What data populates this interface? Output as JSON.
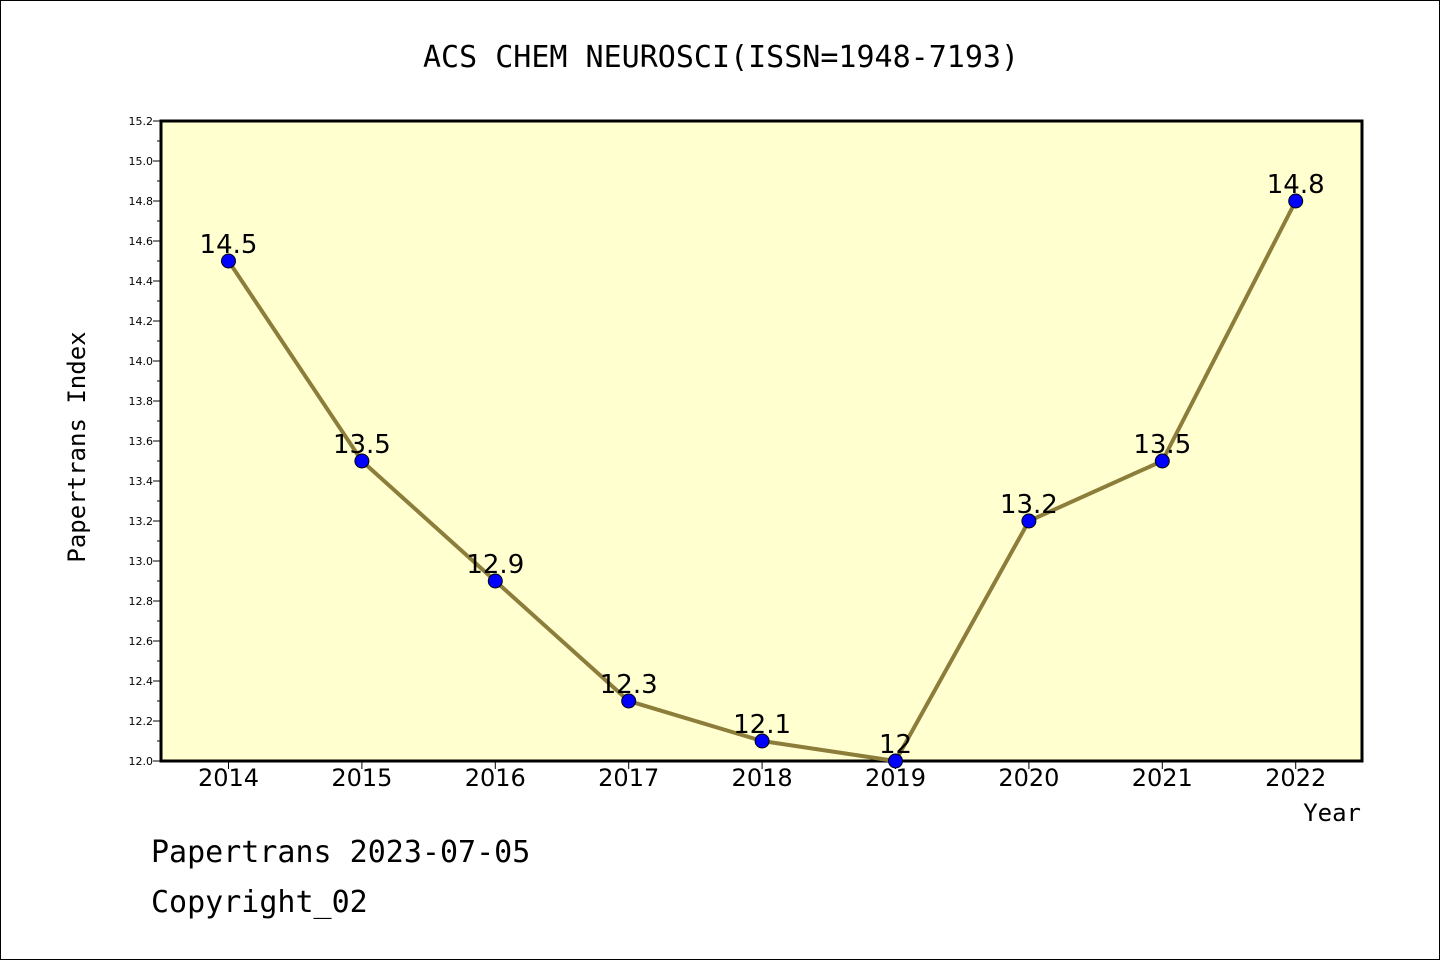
{
  "chart_data": {
    "type": "line",
    "title": "ACS CHEM NEUROSCI(ISSN=1948-7193)",
    "xlabel": "Year",
    "ylabel": "Papertrans Index",
    "categories": [
      "2014",
      "2015",
      "2016",
      "2017",
      "2018",
      "2019",
      "2020",
      "2021",
      "2022"
    ],
    "series": [
      {
        "values": [
          14.5,
          13.5,
          12.9,
          12.3,
          12.1,
          12.0,
          13.2,
          13.5,
          14.8
        ],
        "data_labels": [
          "14.5",
          "13.5",
          "12.9",
          "12.3",
          "12.1",
          "12",
          "13.2",
          "13.5",
          "14.8"
        ]
      }
    ],
    "ylim": [
      12.0,
      15.2
    ],
    "yticks": [
      "12.0",
      "12.2",
      "12.4",
      "12.6",
      "12.8",
      "13.0",
      "13.2",
      "13.4",
      "13.6",
      "13.8",
      "14.0",
      "14.2",
      "14.4",
      "14.6",
      "14.8",
      "15.0",
      "15.2"
    ],
    "grid": false,
    "colors": {
      "plot_background": "#FFFFD0",
      "line": "#8C7D3A",
      "marker": "#0000FF"
    }
  },
  "footer": {
    "line1": "Papertrans 2023-07-05",
    "line2": "Copyright_02"
  }
}
